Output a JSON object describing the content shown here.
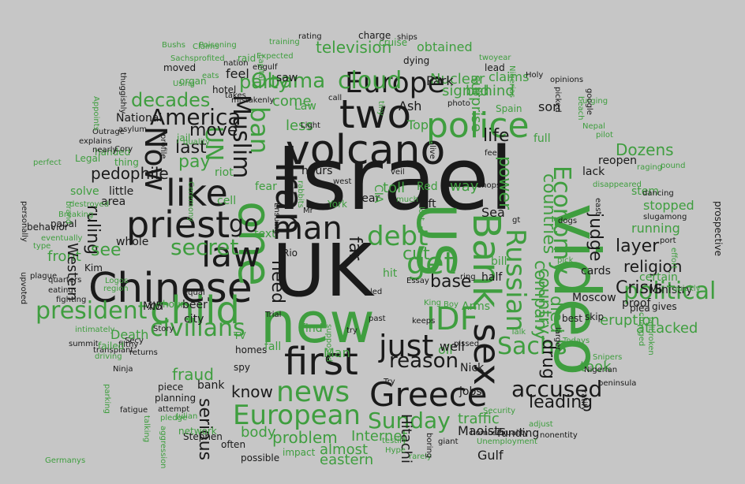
{
  "words": [
    "Israel",
    "UK",
    "video",
    "Chinese",
    "volcano",
    "new",
    "US",
    "one",
    "two",
    "first",
    "Iran",
    "like",
    "Bank",
    "child",
    "priest",
    "sex",
    "Greece",
    "police",
    "Europe",
    "news",
    "law",
    "European",
    "man",
    "IDF",
    "Russian",
    "political",
    "just",
    "accused",
    "Sachs",
    "get",
    "civilians",
    "president",
    "Economy",
    "debt",
    "Muslim",
    "ban",
    "Sunday",
    "cloud",
    "America",
    "Obama",
    "reason",
    "Now",
    "UN",
    "secret",
    "decades",
    "party",
    "go",
    "country",
    "countries",
    "company",
    "died",
    "drug",
    "judge",
    "leading",
    "layer",
    "religion",
    "Crisis",
    "Dozens",
    "life",
    "power",
    "base",
    "cut",
    "need",
    "far",
    "fraud",
    "pay",
    "last",
    "move",
    "pedophile",
    "ruling",
    "see",
    "front",
    "Western",
    "problem",
    "Internet",
    "serious",
    "know",
    "body",
    "traffic",
    "toll",
    "almost",
    "eastern",
    "television",
    "obtained",
    "Nuclear",
    "signed",
    "Park",
    "behind",
    "surprise",
    "claims",
    "running",
    "stopped",
    "certain",
    "attacked",
    "eruption",
    "took",
    "Maoists",
    "funding",
    "Gulf",
    "Hitachi",
    "cards",
    "proof",
    "Moscow",
    "Ministry",
    "lack",
    "reopen",
    "stem",
    "beer",
    "XVI",
    "hour",
    "area",
    "little",
    "whole",
    "Kim",
    "fear",
    "text",
    "Rio",
    "hit",
    "oil",
    "well",
    "Nick",
    "jobs",
    "Man",
    "find",
    "Death",
    "hours",
    "year",
    "less",
    "come",
    "Law",
    "Top",
    "Ash",
    "saw",
    "way",
    "full",
    "son",
    "Sea",
    "left",
    "CIA",
    "Red",
    "Arms",
    "bill",
    "half",
    "best",
    "skip",
    "plea",
    "gives",
    "Spain",
    "riot",
    "cell",
    "city",
    "bank",
    "homes",
    "fall",
    "TV",
    "spy",
    "Trial",
    "Stephen",
    "often",
    "possible",
    "impact",
    "Hype",
    "rarely",
    "testify",
    "boring",
    "giant",
    "Unemployment",
    "homosexuality",
    "nonentity",
    "adjust",
    "Security",
    "Todays",
    "Snipers",
    "Nigerian",
    "peninsula",
    "ratify",
    "Ninja",
    "transplant",
    "returns",
    "filthy",
    "summit",
    "fighting",
    "eating",
    "plague",
    "upvoted",
    "quarters",
    "equal",
    "MI5",
    "Story",
    "Secy",
    "piece",
    "planning",
    "attempt",
    "fatigue",
    "talking",
    "pledge",
    "Julian",
    "network",
    "aggression",
    "Germanys",
    "parking",
    "driving",
    "failed",
    "intimately",
    "Logos",
    "region",
    "eventually",
    "type",
    "behavior",
    "papal",
    "personally",
    "perfect",
    "Legal",
    "Breaking",
    "solve",
    "destroyed",
    "thing",
    "handed",
    "explains",
    "nearly",
    "Cory",
    "asylum",
    "National",
    "Outrage",
    "Sachsprofited",
    "organ",
    "Using",
    "moved",
    "hotel",
    "jail",
    "quality",
    "feel",
    "raid",
    "capital",
    "engulf",
    "Expected",
    "training",
    "rating",
    "charge",
    "ships",
    "dying",
    "twoyear",
    "lead",
    "cruise",
    "Nigerias",
    "urging",
    "Holy",
    "opinions",
    "beach",
    "picked",
    "google",
    "Nepal",
    "pilot",
    "raging",
    "pound",
    "disappeared",
    "dancing",
    "slugamong",
    "port",
    "east",
    "dogs",
    "gt",
    "shops",
    "west",
    "veil",
    "alive",
    "fee",
    "photo",
    "call",
    "tiny",
    "Mr",
    "Light",
    "Essay",
    "ring",
    "try",
    "past",
    "pissed",
    "keeps",
    "supposed",
    "King",
    "Boy",
    "led",
    "Try",
    "pick",
    "changed",
    "jailbroken",
    "quickly",
    "effort",
    "larger",
    "Talk",
    "prospective",
    "Poisoning",
    "Claims",
    "Bushs",
    "thuggishly",
    "Appoints",
    "profile",
    "eats",
    "brand",
    "rabbits",
    "Ensuing",
    "York",
    "lost",
    "much",
    "takes",
    "mistakenly",
    "nation",
    "Ceremony"
  ]
}
